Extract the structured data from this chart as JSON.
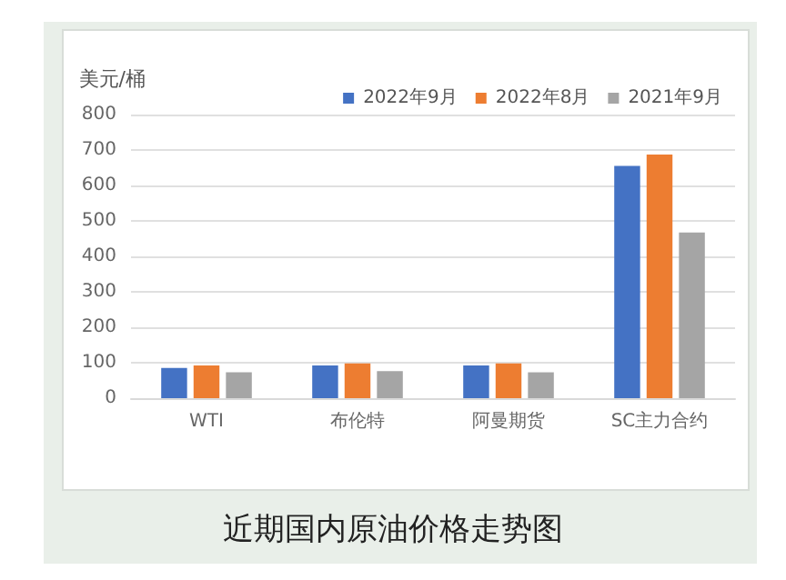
{
  "chart_data": {
    "type": "bar",
    "title": "近期国内原油价格走势图",
    "ylabel": "美元/桶",
    "categories": [
      "WTI",
      "布伦特",
      "阿曼期货",
      "SC主力合约"
    ],
    "series": [
      {
        "name": "2022年9月",
        "color": "#4472c4",
        "values": [
          85,
          92,
          92,
          655
        ]
      },
      {
        "name": "2022年8月",
        "color": "#ed7d31",
        "values": [
          92,
          98,
          98,
          687
        ]
      },
      {
        "name": "2021年9月",
        "color": "#a5a5a5",
        "values": [
          73,
          76,
          73,
          467
        ]
      }
    ],
    "ylim": [
      0,
      800
    ],
    "yticks": [
      0,
      100,
      200,
      300,
      400,
      500,
      600,
      700,
      800
    ],
    "grid": "y",
    "legend": "top right"
  }
}
